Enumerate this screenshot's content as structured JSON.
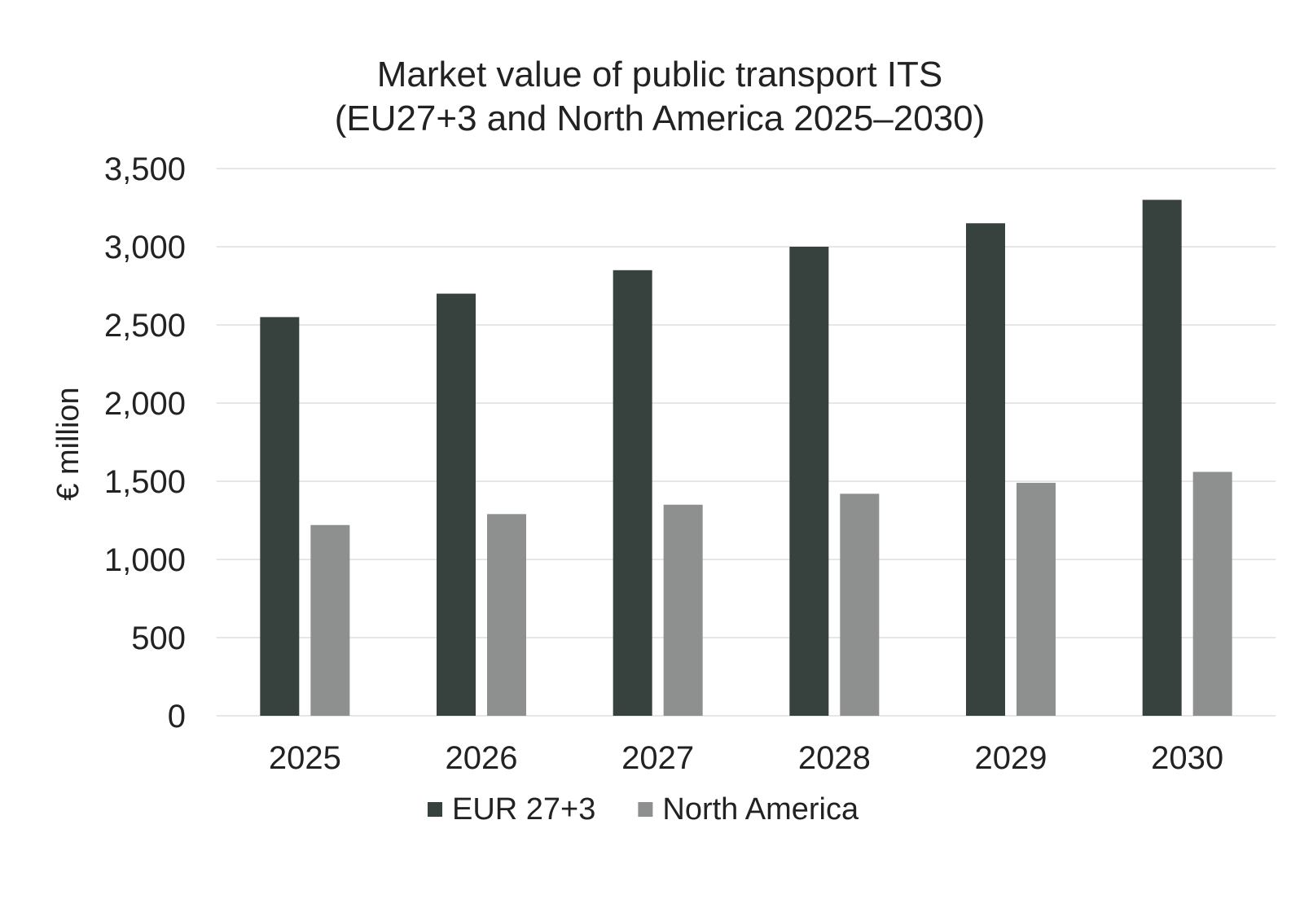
{
  "chart_data": {
    "type": "bar",
    "title": "Market value of public transport ITS",
    "subtitle": "(EU27+3 and North America 2025–2030)",
    "xlabel": "",
    "ylabel": "€ million",
    "ylim": [
      0,
      3500
    ],
    "yticks": [
      0,
      500,
      1000,
      1500,
      2000,
      2500,
      3000,
      3500
    ],
    "ytick_labels": [
      "0",
      "500",
      "1,000",
      "1,500",
      "2,000",
      "2,500",
      "3,000",
      "3,500"
    ],
    "grid": true,
    "legend_position": "bottom",
    "categories": [
      "2025",
      "2026",
      "2027",
      "2028",
      "2029",
      "2030"
    ],
    "series": [
      {
        "name": "EUR 27+3",
        "color": "#37413d",
        "values": [
          2550,
          2700,
          2850,
          3000,
          3150,
          3300
        ]
      },
      {
        "name": "North America",
        "color": "#8d908e",
        "values": [
          1220,
          1290,
          1350,
          1420,
          1490,
          1560
        ]
      }
    ]
  }
}
